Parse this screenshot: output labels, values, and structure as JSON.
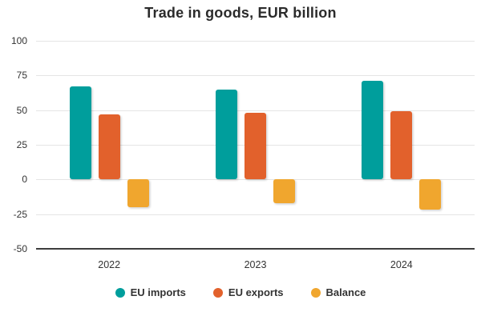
{
  "chart_data": {
    "type": "bar",
    "title": "Trade in goods, EUR billion",
    "categories": [
      "2022",
      "2023",
      "2024"
    ],
    "series": [
      {
        "name": "EU imports",
        "color": "#009e9c",
        "values": [
          67,
          65,
          71
        ]
      },
      {
        "name": "EU exports",
        "color": "#e2612c",
        "values": [
          47,
          48,
          49
        ]
      },
      {
        "name": "Balance",
        "color": "#f0a62e",
        "values": [
          -20,
          -17,
          -22
        ]
      }
    ],
    "ylim": [
      -50,
      100
    ],
    "yticks": [
      100,
      75,
      50,
      25,
      0,
      -25,
      -50
    ],
    "xlabel": "",
    "ylabel": "",
    "grid": true,
    "legend_position": "bottom",
    "baseline": 0
  },
  "colors": {
    "background": "#ffffff",
    "gridline": "#e4e4e4",
    "axis_line": "#3d3d3d",
    "title_text": "#2b2b2b",
    "tick_text": "#333333",
    "legend_text": "#333333"
  }
}
